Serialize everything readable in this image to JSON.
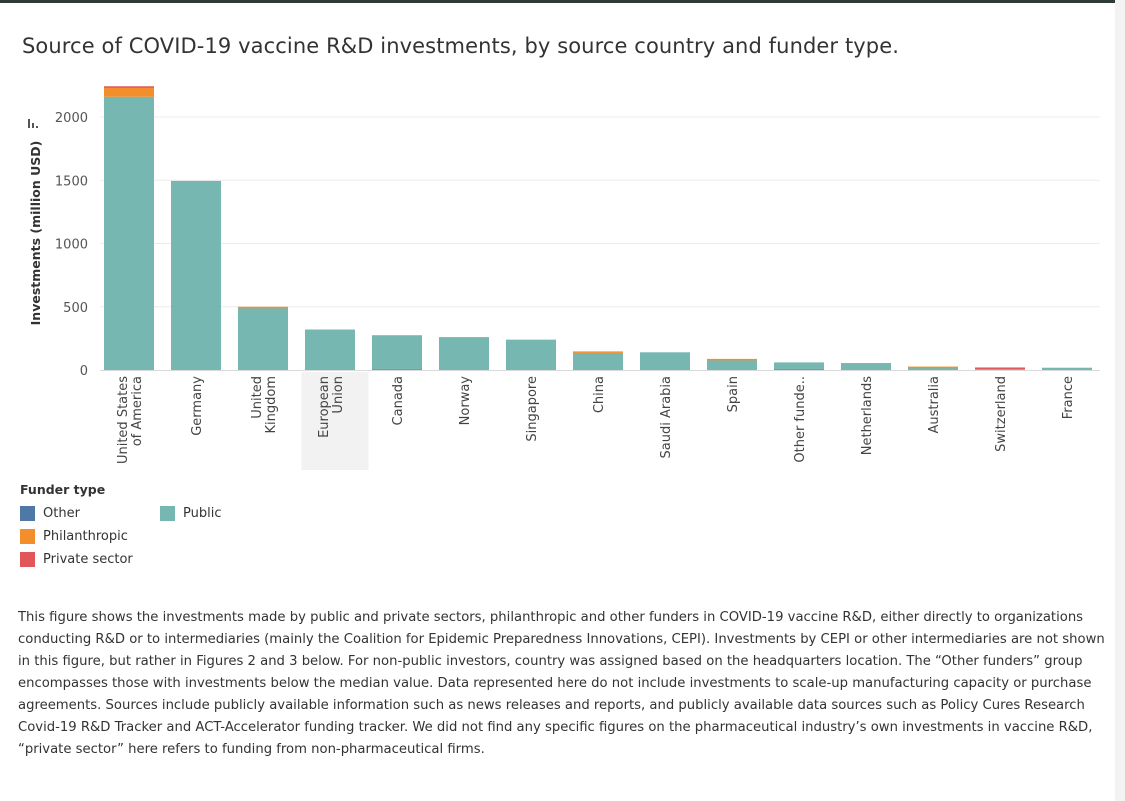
{
  "title": "Source of COVID-19 vaccine R&D investments, by source country and funder type.",
  "chart_data": {
    "type": "bar",
    "stacked": true,
    "ylabel": "Investments (million USD)",
    "ylim": [
      0,
      2300
    ],
    "yticks": [
      0,
      500,
      1000,
      1500,
      2000
    ],
    "grid": true,
    "highlighted_category": "European\nUnion",
    "categories": [
      "United States\nof America",
      "Germany",
      "United\nKingdom",
      "European\nUnion",
      "Canada",
      "Norway",
      "Singapore",
      "China",
      "Saudi Arabia",
      "Spain",
      "Other funde..",
      "Netherlands",
      "Australia",
      "Switzerland",
      "France"
    ],
    "series": [
      {
        "name": "Other",
        "color": "#4e79a7",
        "values": [
          0,
          0,
          0,
          0,
          5,
          0,
          0,
          0,
          0,
          0,
          5,
          0,
          0,
          0,
          0
        ]
      },
      {
        "name": "Public",
        "color": "#76b7b2",
        "values": [
          2160,
          1495,
          490,
          320,
          270,
          260,
          240,
          135,
          140,
          80,
          55,
          55,
          20,
          8,
          18
        ]
      },
      {
        "name": "Philanthropic",
        "color": "#f28e2b",
        "values": [
          75,
          0,
          10,
          0,
          0,
          0,
          0,
          12,
          0,
          8,
          0,
          0,
          7,
          0,
          0
        ]
      },
      {
        "name": "Private sector",
        "color": "#e15759",
        "values": [
          8,
          0,
          0,
          0,
          0,
          0,
          0,
          0,
          0,
          0,
          0,
          0,
          0,
          12,
          0
        ]
      }
    ]
  },
  "legend": {
    "title": "Funder type",
    "items": [
      {
        "label": "Other",
        "color": "#4e79a7"
      },
      {
        "label": "Philanthropic",
        "color": "#f28e2b"
      },
      {
        "label": "Private sector",
        "color": "#e15759"
      },
      {
        "label": "Public",
        "color": "#76b7b2"
      }
    ]
  },
  "note": "This figure shows the investments made by public and private sectors, philanthropic and other funders in COVID-19 vaccine R&D, either directly to organizations conducting R&D or to intermediaries (mainly the Coalition for Epidemic Preparedness Innovations, CEPI). Investments by CEPI or other intermediaries are not shown in this figure, but rather in Figures 2 and 3 below. For non-public investors, country was assigned based on the headquarters location. The “Other funders” group encompasses those with investments below the median value. Data represented here do not include investments to scale-up manufacturing capacity or purchase agreements. Sources include publicly available information such as news releases and reports, and publicly available data sources such as Policy Cures Research Covid-19 R&D Tracker and ACT-Accelerator funding tracker. We did not find any specific figures on the pharmaceutical industry’s own investments in vaccine R&D, “private sector” here refers to funding from non-pharmaceutical firms."
}
